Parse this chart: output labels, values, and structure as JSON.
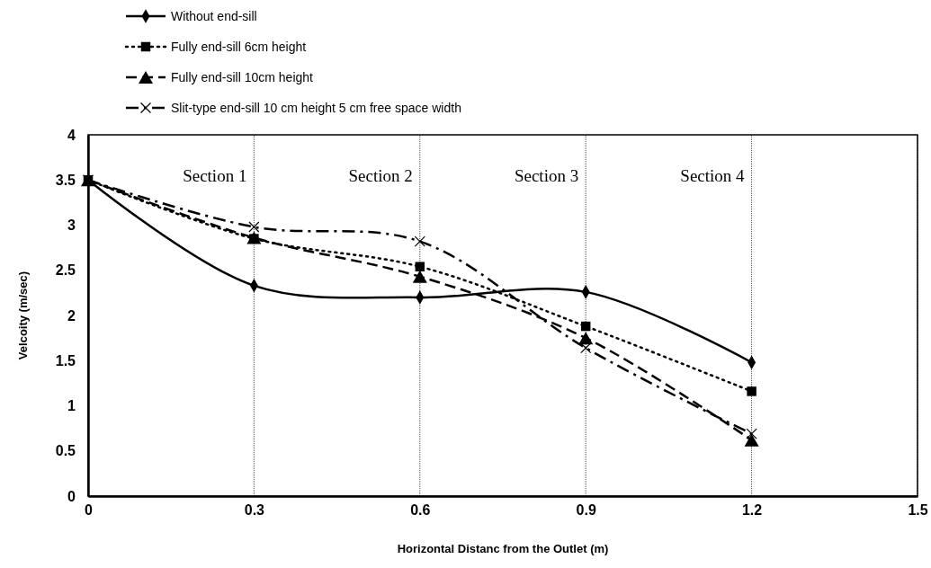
{
  "chart_data": {
    "type": "line",
    "xlabel": "Horizontal Distanc from the Outlet (m)",
    "ylabel": "Velcoity (m/sec)",
    "x": [
      0,
      0.3,
      0.6,
      0.9,
      1.2
    ],
    "series": [
      {
        "name": "Without end-sill",
        "color": "#000000",
        "marker": "diamond",
        "line_style": "solid",
        "values": [
          3.5,
          2.33,
          2.2,
          2.26,
          1.48
        ]
      },
      {
        "name": "Fully end-sill 6cm height",
        "color": "#000000",
        "marker": "square",
        "line_style": "dotted",
        "values": [
          3.5,
          2.85,
          2.54,
          1.88,
          1.16
        ]
      },
      {
        "name": "Fully end-sill 10cm height",
        "color": "#000000",
        "marker": "triangle",
        "line_style": "dashed",
        "values": [
          3.5,
          2.86,
          2.43,
          1.75,
          0.62
        ]
      },
      {
        "name": "Slit-type end-sill 10 cm height 5 cm free space width",
        "color": "#000000",
        "marker": "cross",
        "line_style": "dashdot",
        "values": [
          3.5,
          2.98,
          2.82,
          1.64,
          0.69
        ]
      }
    ],
    "xlim": [
      0,
      1.5
    ],
    "xticks": [
      0,
      0.3,
      0.6,
      0.9,
      1.2,
      1.5
    ],
    "ylim": [
      0,
      4
    ],
    "yticks": [
      0,
      0.5,
      1,
      1.5,
      2,
      2.5,
      3,
      3.5,
      4
    ],
    "grid": "x",
    "legend": "top",
    "annotations": [
      "Section 1",
      "Section 2",
      "Section 3",
      "Section 4"
    ]
  }
}
